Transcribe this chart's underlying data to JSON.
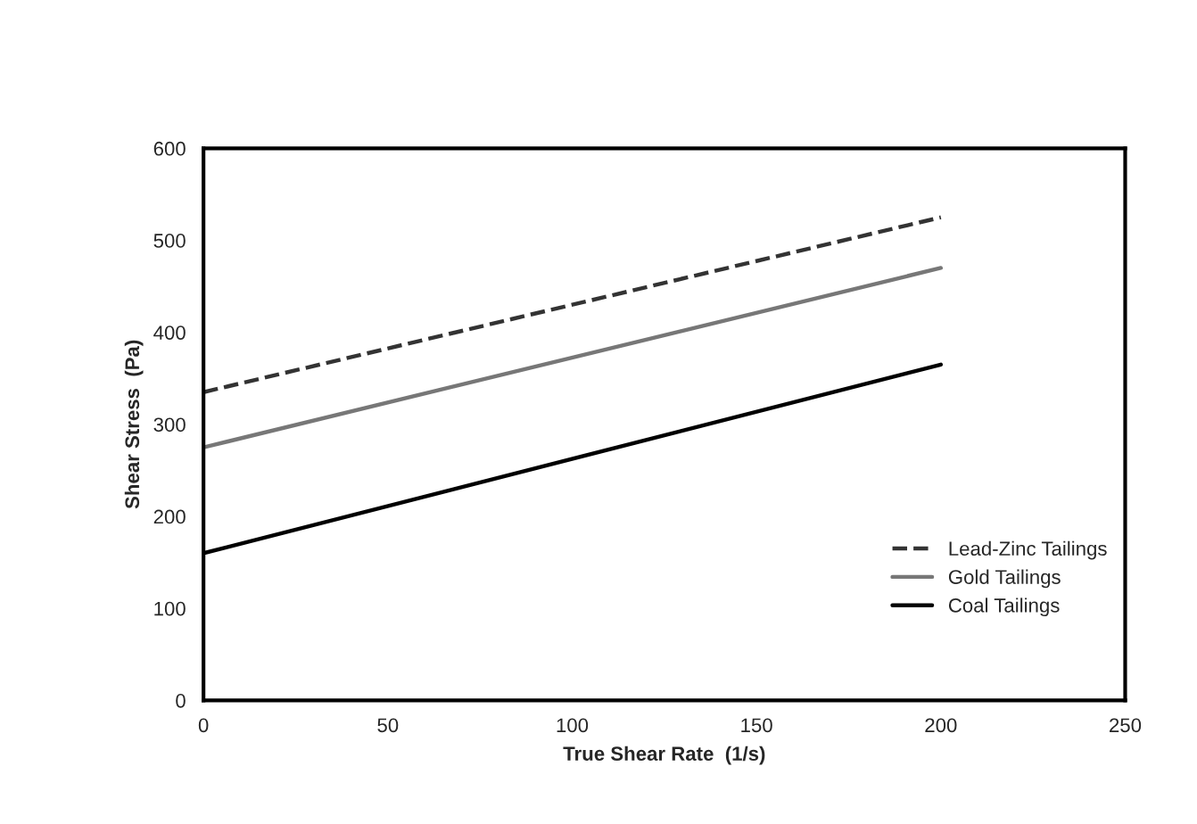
{
  "chart_data": {
    "type": "line",
    "xlabel": "True Shear Rate  (1/s)",
    "ylabel": "Shear Stress  (Pa)",
    "x": [
      0,
      200
    ],
    "series": [
      {
        "name": "Lead-Zinc Tailings",
        "color": "#333333",
        "line_style": "dashed",
        "values": [
          335,
          525
        ]
      },
      {
        "name": "Gold Tailings",
        "color": "#777777",
        "line_style": "solid",
        "values": [
          275,
          470
        ]
      },
      {
        "name": "Coal Tailings",
        "color": "#000000",
        "line_style": "solid",
        "values": [
          160,
          365
        ]
      }
    ],
    "xlim": [
      0,
      250
    ],
    "xticks": [
      0,
      50,
      100,
      150,
      200,
      250
    ],
    "ylim": [
      0,
      600
    ],
    "yticks": [
      0,
      100,
      200,
      300,
      400,
      500,
      600
    ],
    "grid": false,
    "legend": "lower right",
    "marker": "none"
  }
}
